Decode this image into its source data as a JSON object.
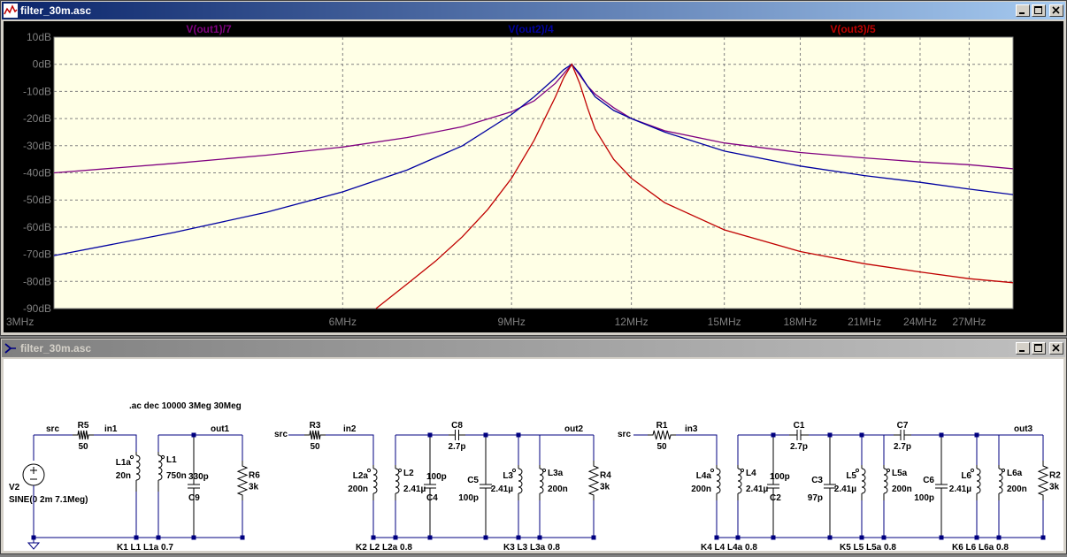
{
  "plot_window": {
    "title": "filter_30m.asc",
    "buttons": [
      "minimize",
      "maximize",
      "close"
    ]
  },
  "schematic_window": {
    "title": "filter_30m.asc",
    "buttons": [
      "minimize",
      "maximize",
      "close"
    ]
  },
  "chart_data": {
    "type": "line",
    "xscale": "log",
    "xlim": [
      3,
      30
    ],
    "ylim": [
      -90,
      10
    ],
    "x_unit": "MHz",
    "grid": true,
    "yticks": [
      "10dB",
      "0dB",
      "-10dB",
      "-20dB",
      "-30dB",
      "-40dB",
      "-50dB",
      "-60dB",
      "-70dB",
      "-80dB",
      "-90dB"
    ],
    "ytick_values": [
      10,
      0,
      -10,
      -20,
      -30,
      -40,
      -50,
      -60,
      -70,
      -80,
      -90
    ],
    "xticks": [
      "3MHz",
      "6MHz",
      "9MHz",
      "12MHz",
      "15MHz",
      "18MHz",
      "21MHz",
      "24MHz",
      "27MHz"
    ],
    "xtick_values": [
      3,
      6,
      9,
      12,
      15,
      18,
      21,
      24,
      27
    ],
    "series": [
      {
        "name": "V(out1)/7",
        "color": "#800080",
        "x": [
          3,
          4,
          5,
          6,
          7,
          8,
          9,
          9.5,
          10,
          10.2,
          10.4,
          10.6,
          10.8,
          11,
          11.5,
          12,
          13,
          15,
          18,
          21,
          24,
          27,
          30
        ],
        "y": [
          -40,
          -36.5,
          -33.5,
          -30.5,
          -27,
          -23,
          -17.5,
          -13.5,
          -7,
          -3.5,
          0,
          -4,
          -8,
          -11,
          -16,
          -20,
          -24.5,
          -29,
          -32.5,
          -34.5,
          -36,
          -37,
          -38.5
        ]
      },
      {
        "name": "V(out2)/4",
        "color": "#0000a0",
        "x": [
          3,
          4,
          5,
          6,
          7,
          8,
          9,
          9.5,
          10,
          10.2,
          10.4,
          10.6,
          10.8,
          11,
          11.5,
          12,
          13,
          15,
          18,
          21,
          24,
          27,
          30
        ],
        "y": [
          -70.5,
          -62,
          -54.5,
          -47,
          -39,
          -30,
          -18.5,
          -12,
          -5,
          -2,
          0,
          -3.5,
          -8,
          -12,
          -17,
          -20,
          -25,
          -32,
          -37.5,
          -41,
          -43.5,
          -46,
          -48
        ]
      },
      {
        "name": "V(out3)/5",
        "color": "#c00000",
        "x": [
          6.5,
          7,
          7.5,
          8,
          8.5,
          9,
          9.5,
          10,
          10.2,
          10.4,
          10.6,
          10.8,
          11,
          11.5,
          12,
          13,
          15,
          18,
          21,
          24,
          27,
          30
        ],
        "y": [
          -90,
          -81,
          -72.5,
          -63.5,
          -53.5,
          -42,
          -28,
          -12,
          -5,
          0,
          -7,
          -16,
          -24,
          -35,
          -42,
          -51,
          -61,
          -69,
          -73.5,
          -76.5,
          -79,
          -80.5
        ]
      }
    ]
  },
  "schematic": {
    "directive": ".ac dec 10000 3Meg 30Meg",
    "source_name": "V2",
    "source_value": "SINE(0 2m 7.1Meg)",
    "net_labels": [
      {
        "id": "src1",
        "text": "src"
      },
      {
        "id": "in1",
        "text": "in1"
      },
      {
        "id": "out1",
        "text": "out1"
      },
      {
        "id": "src2",
        "text": "src"
      },
      {
        "id": "in2",
        "text": "in2"
      },
      {
        "id": "out2",
        "text": "out2"
      },
      {
        "id": "src3",
        "text": "src"
      },
      {
        "id": "in3",
        "text": "in3"
      },
      {
        "id": "out3",
        "text": "out3"
      }
    ],
    "components": [
      {
        "id": "R5",
        "name": "R5",
        "value": "50"
      },
      {
        "id": "L1a",
        "name": "L1a",
        "value": "20n"
      },
      {
        "id": "L1",
        "name": "L1",
        "value": "750n"
      },
      {
        "id": "C9",
        "name": "C9",
        "value": "330p"
      },
      {
        "id": "R6",
        "name": "R6",
        "value": "3k"
      },
      {
        "id": "R3",
        "name": "R3",
        "value": "50"
      },
      {
        "id": "L2a",
        "name": "L2a",
        "value": "200n"
      },
      {
        "id": "L2",
        "name": "L2",
        "value": "2.41µ"
      },
      {
        "id": "C4",
        "name": "C4",
        "value": "100p"
      },
      {
        "id": "C8",
        "name": "C8",
        "value": "2.7p"
      },
      {
        "id": "C5",
        "name": "C5",
        "value": "100p"
      },
      {
        "id": "L3",
        "name": "L3",
        "value": "2.41µ"
      },
      {
        "id": "L3a",
        "name": "L3a",
        "value": "200n"
      },
      {
        "id": "R4",
        "name": "R4",
        "value": "3k"
      },
      {
        "id": "R1",
        "name": "R1",
        "value": "50"
      },
      {
        "id": "L4a",
        "name": "L4a",
        "value": "200n"
      },
      {
        "id": "L4",
        "name": "L4",
        "value": "2.41µ"
      },
      {
        "id": "C2",
        "name": "C2",
        "value": "100p"
      },
      {
        "id": "C1",
        "name": "C1",
        "value": "2.7p"
      },
      {
        "id": "C3",
        "name": "C3",
        "value": "97p"
      },
      {
        "id": "L5",
        "name": "L5",
        "value": "2.41µ"
      },
      {
        "id": "L5a",
        "name": "L5a",
        "value": "200n"
      },
      {
        "id": "C7",
        "name": "C7",
        "value": "2.7p"
      },
      {
        "id": "C6",
        "name": "C6",
        "value": "100p"
      },
      {
        "id": "L6",
        "name": "L6",
        "value": "2.41µ"
      },
      {
        "id": "L6a",
        "name": "L6a",
        "value": "200n"
      },
      {
        "id": "R2",
        "name": "R2",
        "value": "3k"
      }
    ],
    "coupling": [
      {
        "id": "K1",
        "text": "K1 L1 L1a 0.7"
      },
      {
        "id": "K2",
        "text": "K2 L2 L2a 0.8"
      },
      {
        "id": "K3",
        "text": "K3 L3 L3a 0.8"
      },
      {
        "id": "K4",
        "text": "K4 L4 L4a 0.8"
      },
      {
        "id": "K5",
        "text": "K5 L5 L5a 0.8"
      },
      {
        "id": "K6",
        "text": "K6 L6 L6a 0.8"
      }
    ]
  }
}
